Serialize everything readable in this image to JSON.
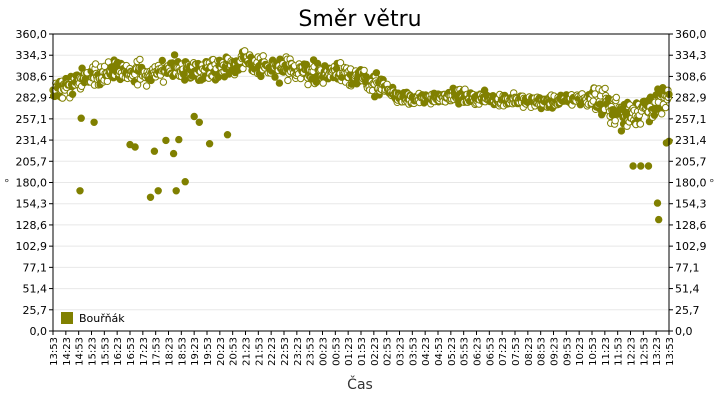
{
  "chart_data": {
    "type": "scatter",
    "title": "Směr větru",
    "xlabel": "Čas",
    "ylabel": "°",
    "ylim": [
      0,
      360
    ],
    "y_ticks": [
      "0,0",
      "25,7",
      "51,4",
      "77,1",
      "102,9",
      "128,6",
      "154,3",
      "180,0",
      "205,7",
      "231,4",
      "257,1",
      "282,9",
      "308,6",
      "334,3",
      "360,0"
    ],
    "x_ticks": [
      "13:53",
      "14:23",
      "14:53",
      "15:23",
      "15:53",
      "16:23",
      "16:53",
      "17:23",
      "17:53",
      "18:23",
      "18:53",
      "19:23",
      "19:53",
      "20:23",
      "20:53",
      "21:23",
      "21:53",
      "22:23",
      "22:53",
      "23:23",
      "23:53",
      "00:23",
      "00:53",
      "01:23",
      "01:53",
      "02:23",
      "02:53",
      "03:23",
      "03:53",
      "04:23",
      "04:53",
      "05:23",
      "05:53",
      "06:23",
      "06:53",
      "07:23",
      "07:53",
      "08:23",
      "08:53",
      "09:23",
      "09:53",
      "10:23",
      "10:53",
      "11:23",
      "11:53",
      "12:23",
      "12:53",
      "13:23",
      "13:53"
    ],
    "grid": true,
    "legend_position": "bottom-left",
    "series": [
      {
        "name": "Bouřňák",
        "color": "#808000",
        "trend": [
          [
            0,
            292
          ],
          [
            1,
            298
          ],
          [
            2,
            304
          ],
          [
            3,
            308
          ],
          [
            4,
            312
          ],
          [
            5,
            314
          ],
          [
            6,
            312
          ],
          [
            7,
            312
          ],
          [
            8,
            314
          ],
          [
            9,
            316
          ],
          [
            10,
            318
          ],
          [
            11,
            316
          ],
          [
            12,
            318
          ],
          [
            13,
            320
          ],
          [
            14,
            324
          ],
          [
            15,
            326
          ],
          [
            16,
            322
          ],
          [
            17,
            318
          ],
          [
            18,
            316
          ],
          [
            19,
            316
          ],
          [
            20,
            314
          ],
          [
            21,
            312
          ],
          [
            22,
            314
          ],
          [
            23,
            312
          ],
          [
            24,
            306
          ],
          [
            25,
            300
          ],
          [
            26,
            292
          ],
          [
            27,
            284
          ],
          [
            28,
            280
          ],
          [
            29,
            282
          ],
          [
            30,
            284
          ],
          [
            31,
            286
          ],
          [
            32,
            284
          ],
          [
            33,
            282
          ],
          [
            34,
            282
          ],
          [
            35,
            280
          ],
          [
            36,
            280
          ],
          [
            37,
            278
          ],
          [
            38,
            278
          ],
          [
            39,
            278
          ],
          [
            40,
            280
          ],
          [
            41,
            282
          ],
          [
            42,
            280
          ],
          [
            43,
            274
          ],
          [
            44,
            266
          ],
          [
            45,
            262
          ],
          [
            46,
            270
          ],
          [
            47,
            276
          ],
          [
            48,
            282
          ]
        ],
        "outliers": [
          [
            2.1,
            170
          ],
          [
            2.2,
            258
          ],
          [
            3.2,
            253
          ],
          [
            6.0,
            226
          ],
          [
            6.4,
            223
          ],
          [
            7.6,
            162
          ],
          [
            7.9,
            218
          ],
          [
            8.2,
            170
          ],
          [
            8.8,
            231
          ],
          [
            9.4,
            215
          ],
          [
            9.6,
            170
          ],
          [
            9.8,
            232
          ],
          [
            10.3,
            181
          ],
          [
            11.4,
            253
          ],
          [
            11.0,
            260
          ],
          [
            12.2,
            227
          ],
          [
            13.6,
            238
          ],
          [
            45.2,
            200
          ],
          [
            45.8,
            200
          ],
          [
            46.4,
            200
          ],
          [
            47.1,
            155
          ],
          [
            47.2,
            135
          ],
          [
            47.8,
            228
          ],
          [
            48.0,
            230
          ]
        ]
      }
    ]
  }
}
